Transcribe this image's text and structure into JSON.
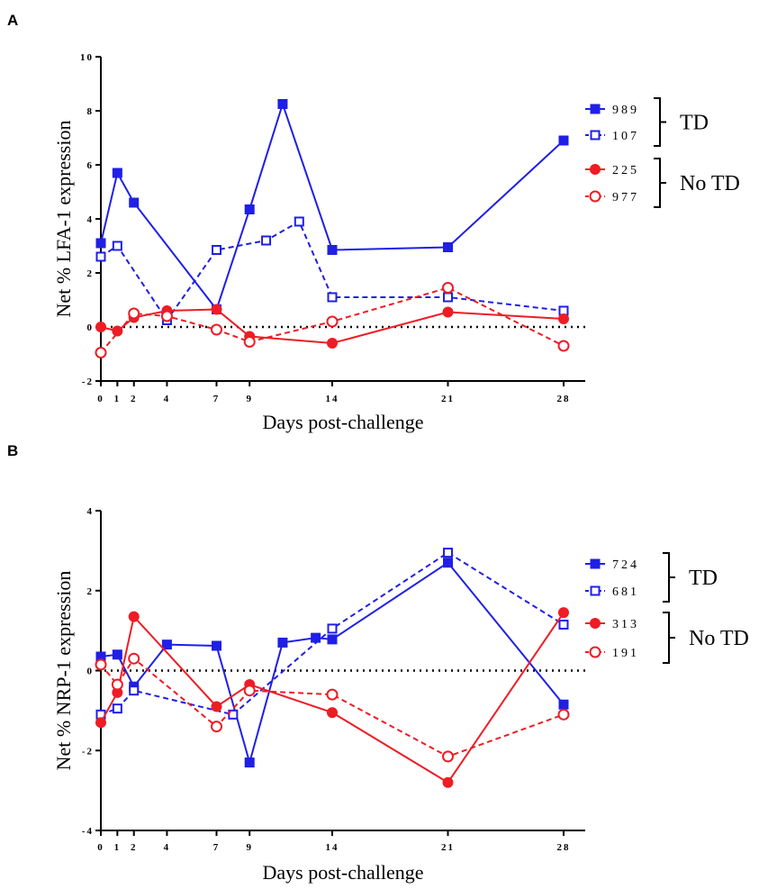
{
  "chart_data": [
    {
      "panel": "A",
      "type": "line",
      "title": "",
      "xlabel": "Days post-challenge",
      "ylabel": "Net % LFA-1 expression",
      "ylim": [
        -2,
        10
      ],
      "yticks": [
        -2,
        0,
        2,
        4,
        6,
        8,
        10
      ],
      "xlim": [
        0,
        28
      ],
      "xticks": [
        0,
        1,
        2,
        4,
        7,
        9,
        14,
        21,
        28
      ],
      "zero_reference_line": true,
      "legend_position": "right",
      "series": [
        {
          "name": "989",
          "group": "TD",
          "color": "#1f1fe6",
          "marker": "square-filled",
          "line": "solid",
          "x": [
            0,
            1,
            2,
            7,
            9,
            11,
            14,
            21,
            28
          ],
          "y": [
            3.1,
            5.7,
            4.6,
            0.65,
            4.35,
            8.25,
            2.85,
            2.95,
            6.9
          ]
        },
        {
          "name": "107",
          "group": "TD",
          "color": "#1f1fe6",
          "marker": "square-open",
          "line": "dashed",
          "x": [
            0,
            1,
            4,
            7,
            10,
            12,
            14,
            21,
            28
          ],
          "y": [
            2.6,
            3.0,
            0.25,
            2.85,
            3.2,
            3.9,
            1.1,
            1.1,
            0.6
          ]
        },
        {
          "name": "225",
          "group": "No TD",
          "color": "#ee1c24",
          "marker": "circle-filled",
          "line": "solid",
          "x": [
            0,
            1,
            2,
            4,
            7,
            9,
            14,
            21,
            28
          ],
          "y": [
            0.0,
            -0.15,
            0.35,
            0.6,
            0.65,
            -0.35,
            -0.6,
            0.55,
            0.3
          ]
        },
        {
          "name": "977",
          "group": "No TD",
          "color": "#ee1c24",
          "marker": "circle-open",
          "line": "dashed",
          "x": [
            0,
            2,
            4,
            7,
            9,
            14,
            21,
            28
          ],
          "y": [
            -0.95,
            0.5,
            0.4,
            -0.1,
            -0.55,
            0.2,
            1.45,
            -0.7
          ]
        }
      ],
      "groups": [
        {
          "label": "TD",
          "series": [
            "989",
            "107"
          ]
        },
        {
          "label": "No TD",
          "series": [
            "225",
            "977"
          ]
        }
      ]
    },
    {
      "panel": "B",
      "type": "line",
      "title": "",
      "xlabel": "Days post-challenge",
      "ylabel": "Net % NRP-1 expression",
      "ylim": [
        -4,
        4
      ],
      "yticks": [
        -4,
        -2,
        0,
        2,
        4
      ],
      "xlim": [
        0,
        28
      ],
      "xticks": [
        0,
        1,
        2,
        4,
        7,
        9,
        14,
        21,
        28
      ],
      "zero_reference_line": true,
      "legend_position": "right",
      "series": [
        {
          "name": "724",
          "group": "TD",
          "color": "#1f1fe6",
          "marker": "square-filled",
          "line": "solid",
          "x": [
            0,
            1,
            2,
            4,
            7,
            9,
            11,
            13,
            14,
            21,
            28
          ],
          "y": [
            0.35,
            0.4,
            -0.4,
            0.65,
            0.62,
            -2.3,
            0.7,
            0.82,
            0.78,
            2.7,
            -0.85
          ]
        },
        {
          "name": "681",
          "group": "TD",
          "color": "#1f1fe6",
          "marker": "square-open",
          "line": "dashed",
          "x": [
            0,
            1,
            2,
            8,
            14,
            21,
            28
          ],
          "y": [
            -1.1,
            -0.95,
            -0.5,
            -1.1,
            1.05,
            2.95,
            1.15
          ]
        },
        {
          "name": "313",
          "group": "No TD",
          "color": "#ee1c24",
          "marker": "circle-filled",
          "line": "solid",
          "x": [
            0,
            1,
            2,
            7,
            9,
            14,
            21,
            28
          ],
          "y": [
            -1.3,
            -0.55,
            1.35,
            -0.9,
            -0.35,
            -1.05,
            -2.8,
            1.45
          ]
        },
        {
          "name": "191",
          "group": "No TD",
          "color": "#ee1c24",
          "marker": "circle-open",
          "line": "dashed",
          "x": [
            0,
            1,
            2,
            7,
            9,
            14,
            21,
            28
          ],
          "y": [
            0.15,
            -0.35,
            0.3,
            -1.4,
            -0.5,
            -0.6,
            -2.15,
            -1.1
          ]
        }
      ],
      "groups": [
        {
          "label": "TD",
          "series": [
            "724",
            "681"
          ]
        },
        {
          "label": "No TD",
          "series": [
            "313",
            "191"
          ]
        }
      ]
    }
  ]
}
